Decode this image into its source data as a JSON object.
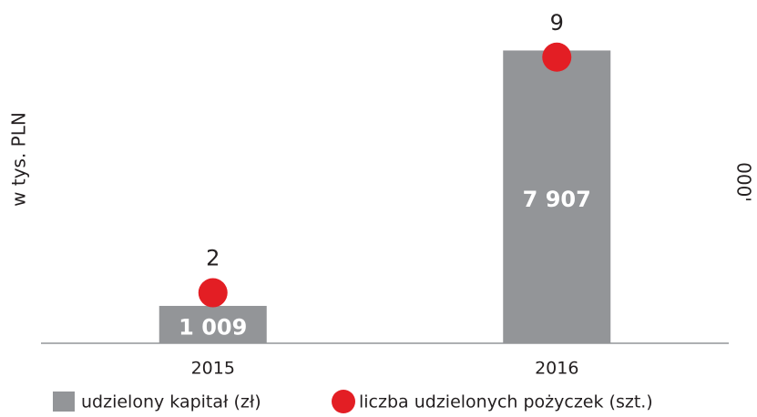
{
  "chart_data": {
    "type": "bar",
    "categories": [
      "2015",
      "2016"
    ],
    "ylabel": "w tys. PLN",
    "y2label": "000'",
    "ylim": [
      0,
      9000
    ],
    "y2lim": [
      0.5,
      10.4
    ],
    "series": [
      {
        "name": "udzielony kapitał (zł)",
        "type": "bar",
        "color": "#939598",
        "values": [
          1009,
          7907
        ],
        "value_labels": [
          "1 009",
          "7 907"
        ]
      },
      {
        "name": "liczba udzielonych pożyczek (szt.)",
        "type": "scatter",
        "axis": "y2",
        "color": "#e31e24",
        "values": [
          2,
          9
        ]
      }
    ]
  }
}
